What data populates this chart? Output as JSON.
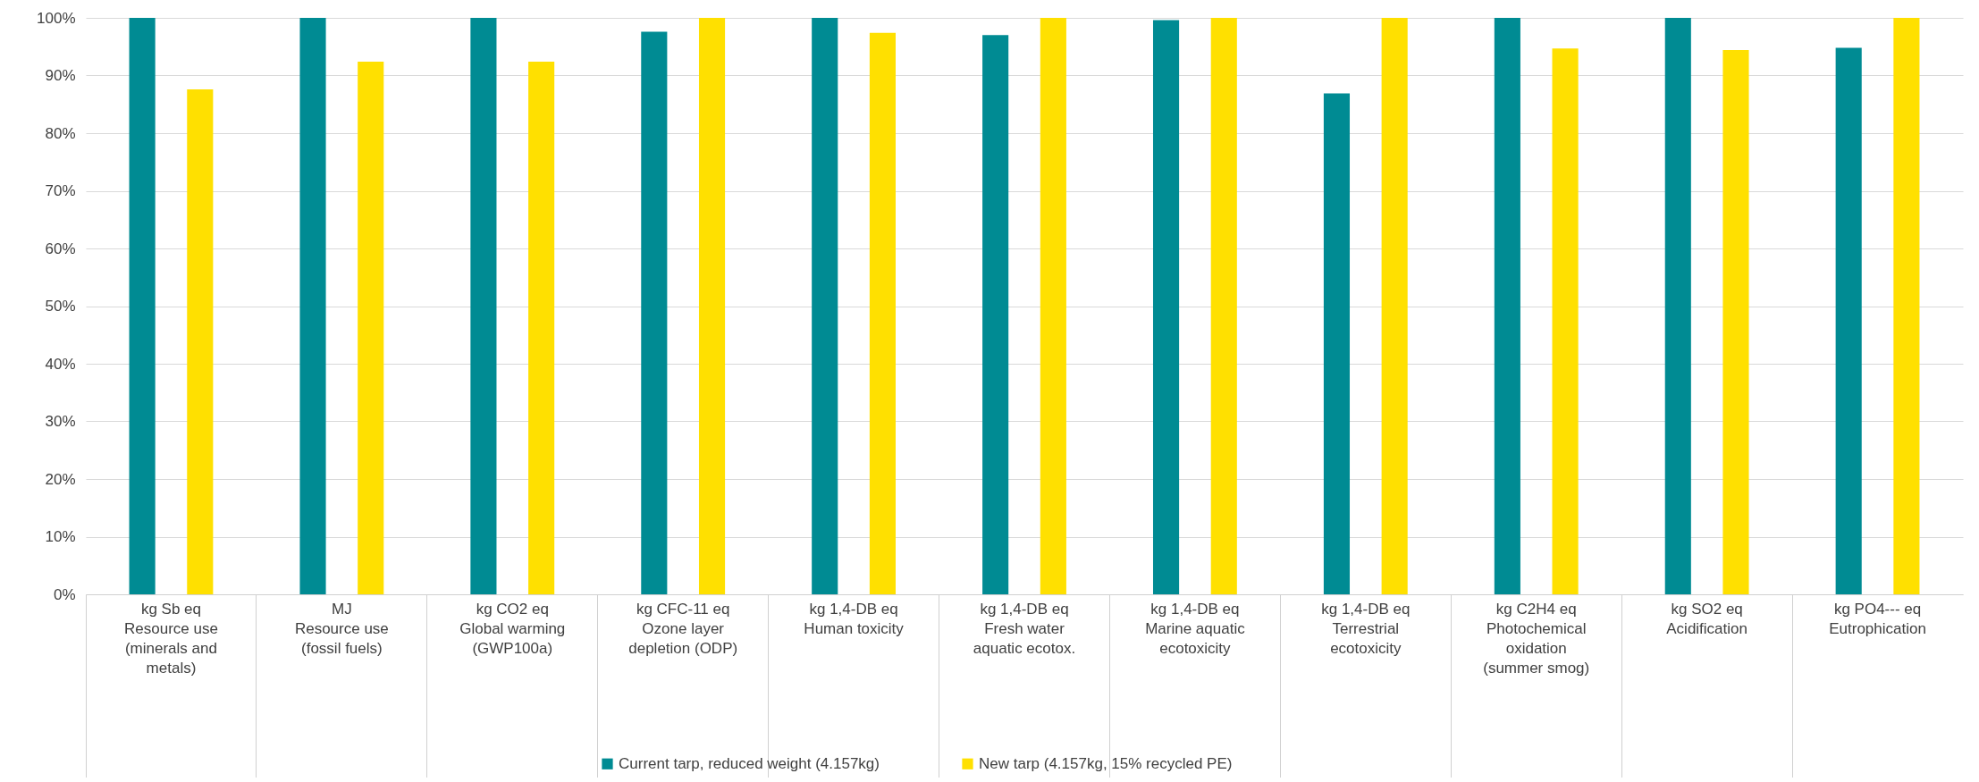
{
  "chart_data": {
    "type": "bar",
    "categories": [
      "kg Sb eq\n\nResource use\n(minerals and\nmetals)",
      "MJ\n\nResource use\n(fossil fuels)",
      "kg CO2 eq\n\nGlobal warming\n(GWP100a)",
      "kg CFC-11 eq\n\nOzone layer\ndepletion (ODP)",
      "kg 1,4-DB eq\n\nHuman toxicity",
      "kg 1,4-DB eq\n\nFresh water\naquatic ecotox.",
      "kg 1,4-DB eq\n\nMarine aquatic\necotoxicity",
      "kg 1,4-DB eq\n\nTerrestrial\necotoxicity",
      "kg C2H4 eq\n\nPhotochemical\noxidation\n(summer smog)",
      "kg SO2 eq\n\nAcidification",
      "kg PO4--- eq\n\nEutrophication"
    ],
    "series": [
      {
        "name": "Current tarp, reduced weight (4.157kg)",
        "color": "#008b93",
        "values": [
          100,
          100,
          100,
          97.6,
          100,
          97.0,
          99.6,
          86.9,
          100,
          100,
          94.8
        ]
      },
      {
        "name": "New tarp (4.157kg, 15% recycled PE)",
        "color": "#ffe000",
        "values": [
          87.6,
          92.4,
          92.4,
          100,
          97.4,
          100,
          100,
          100,
          94.7,
          94.4,
          100
        ]
      }
    ],
    "ylim": [
      0,
      100
    ],
    "yticks": [
      {
        "value": 0,
        "label": "0%"
      },
      {
        "value": 10,
        "label": "10%"
      },
      {
        "value": 20,
        "label": "20%"
      },
      {
        "value": 30,
        "label": "30%"
      },
      {
        "value": 40,
        "label": "40%"
      },
      {
        "value": 50,
        "label": "50%"
      },
      {
        "value": 60,
        "label": "60%"
      },
      {
        "value": 70,
        "label": "70%"
      },
      {
        "value": 80,
        "label": "80%"
      },
      {
        "value": 90,
        "label": "90%"
      },
      {
        "value": 100,
        "label": "100%"
      }
    ],
    "grid": "y",
    "legend": "bottom"
  }
}
